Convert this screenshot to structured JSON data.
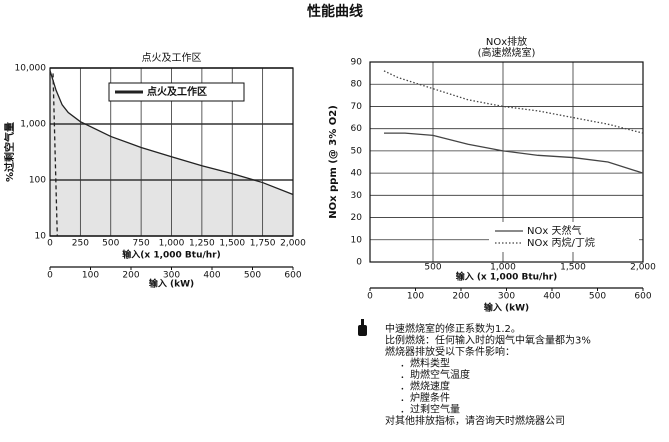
{
  "title": "性能曲线",
  "chart_data": [
    {
      "type": "line",
      "title": "点火及工作区",
      "ylabel": "%过剩空气量",
      "xlabel": "输入(x 1,000 Btu/hr)",
      "log_y": true,
      "grid": true,
      "legend": "top",
      "ylim": [
        10,
        10000
      ],
      "yticks": [
        10,
        100,
        {
          "value": 1000,
          "label": "1,000"
        },
        {
          "value": 10000,
          "label": "10,000"
        }
      ],
      "xlim": [
        0,
        2000
      ],
      "xticks": [
        0,
        250,
        500,
        750,
        {
          "value": 1000,
          "label": "1,000"
        },
        {
          "value": 1250,
          "label": "1,250"
        },
        {
          "value": 1500,
          "label": "1,500"
        },
        {
          "value": 1750,
          "label": "1,750"
        },
        {
          "value": 2000,
          "label": "2,000"
        }
      ],
      "x2label": "输入 (kW)",
      "x2lim": [
        0,
        600
      ],
      "x2ticks": [
        0,
        100,
        200,
        300,
        400,
        500,
        600
      ],
      "series": [
        {
          "name": "点火及工作区",
          "color": "#222222",
          "style": "solid",
          "area": true,
          "x": [
            0,
            50,
            100,
            150,
            250,
            500,
            750,
            1000,
            1250,
            1500,
            1750,
            2000
          ],
          "values": [
            9000,
            4000,
            2200,
            1600,
            1100,
            600,
            380,
            260,
            180,
            130,
            90,
            55
          ]
        },
        {
          "color": "#222222",
          "style": "dashed",
          "x": [
            25,
            60
          ],
          "values": [
            8000,
            10
          ]
        }
      ]
    },
    {
      "type": "line",
      "title": "NOx排放",
      "subtitle": "(高速燃烧室)",
      "ylabel": "NOx ppm (@ 3% O2)",
      "xlabel": "输入 (x 1,000 Btu/hr)",
      "grid": true,
      "legend": "bottom-right",
      "ylim": [
        0,
        90
      ],
      "yticks": [
        0,
        10,
        20,
        30,
        40,
        50,
        60,
        70,
        80,
        90
      ],
      "xlim": [
        50,
        2000
      ],
      "xticks": [
        500,
        {
          "value": 1000,
          "label": "1,000"
        },
        {
          "value": 1500,
          "label": "1,500"
        },
        {
          "value": 2000,
          "label": "2,000"
        }
      ],
      "x2label": "输入 (kW)",
      "x2lim": [
        0,
        600
      ],
      "x2ticks": [
        0,
        100,
        200,
        300,
        400,
        500,
        600
      ],
      "series": [
        {
          "name": "NOx 天然气",
          "color": "#444444",
          "style": "solid",
          "x": [
            150,
            300,
            500,
            750,
            1000,
            1250,
            1500,
            1750,
            2000
          ],
          "values": [
            58,
            58,
            57,
            53,
            50,
            48,
            47,
            45,
            40
          ]
        },
        {
          "name": "NOx 丙烷/丁烷",
          "color": "#444444",
          "style": "dotted",
          "x": [
            150,
            250,
            500,
            750,
            1000,
            1250,
            1500,
            1750,
            2000
          ],
          "values": [
            86,
            83,
            78,
            73,
            70,
            68,
            65,
            62,
            58
          ]
        }
      ]
    }
  ],
  "notes": [
    "中速燃烧室的修正系数为1.2。",
    "比例燃烧：任何输入时的烟气中氧含量都为3%",
    "燃烧器排放受以下条件影响："
  ],
  "factors": [
    "．燃料类型",
    "．助燃空气温度",
    "．燃烧速度",
    "．炉膛条件",
    "．过剩空气量"
  ],
  "footer": "对其他排放指标，请咨询天时燃烧器公司"
}
